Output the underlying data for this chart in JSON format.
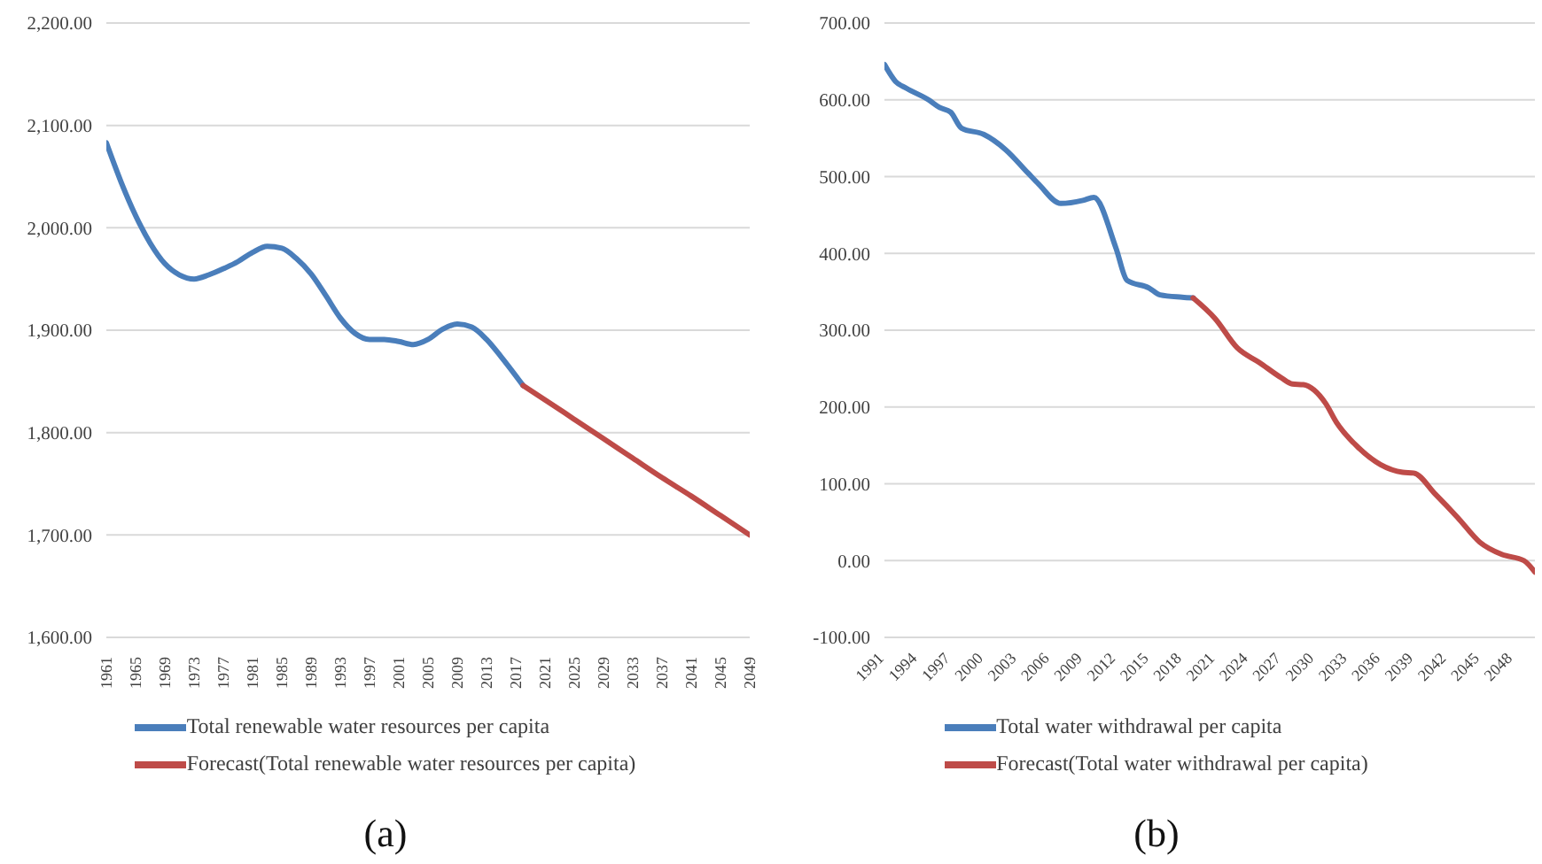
{
  "chart_data": [
    {
      "type": "line",
      "annotations": [
        "(a)"
      ],
      "xlim": [
        1961,
        2049
      ],
      "xticks": [
        1961,
        1965,
        1969,
        1973,
        1977,
        1981,
        1985,
        1989,
        1993,
        1997,
        2001,
        2005,
        2009,
        2013,
        2017,
        2021,
        2025,
        2029,
        2033,
        2037,
        2041,
        2045,
        2049
      ],
      "ylim": [
        1600,
        2200
      ],
      "yticks": [
        {
          "value": 1600,
          "label": "1,600.00"
        },
        {
          "value": 1700,
          "label": "1,700.00"
        },
        {
          "value": 1800,
          "label": "1,800.00"
        },
        {
          "value": 1900,
          "label": "1,900.00"
        },
        {
          "value": 2000,
          "label": "2,000.00"
        },
        {
          "value": 2100,
          "label": "2,100.00"
        },
        {
          "value": 2200,
          "label": "2,200.00"
        }
      ],
      "grid": "y",
      "legend": "bottom",
      "series": [
        {
          "name": "Total renewable water resources per capita",
          "color": "#4a7ebb",
          "x": [
            1961,
            1963,
            1965,
            1967,
            1969,
            1971,
            1973,
            1975,
            1977,
            1979,
            1981,
            1983,
            1985,
            1987,
            1989,
            1991,
            1993,
            1995,
            1997,
            1999,
            2001,
            2003,
            2005,
            2007,
            2009,
            2011,
            2013,
            2015,
            2018
          ],
          "values": [
            2083,
            2045,
            2012,
            1985,
            1965,
            1954,
            1950,
            1954,
            1960,
            1967,
            1976,
            1982,
            1980,
            1970,
            1955,
            1934,
            1912,
            1897,
            1891,
            1891,
            1889,
            1886,
            1891,
            1901,
            1906,
            1903,
            1891,
            1874,
            1846
          ]
        },
        {
          "name": "Forecast(Total renewable water resources per capita)",
          "color": "#be4b48",
          "x": [
            2018,
            2021,
            2025,
            2029,
            2033,
            2037,
            2041,
            2045,
            2049
          ],
          "values": [
            1846,
            1832,
            1813,
            1794,
            1775,
            1756,
            1738,
            1719,
            1700
          ]
        }
      ]
    },
    {
      "type": "line",
      "annotations": [
        "(b)"
      ],
      "xlim": [
        1991,
        2050
      ],
      "xticks": [
        1991,
        1994,
        1997,
        2000,
        2003,
        2006,
        2009,
        2012,
        2015,
        2018,
        2021,
        2024,
        2027,
        2030,
        2033,
        2036,
        2039,
        2042,
        2045,
        2048
      ],
      "ylim": [
        -100,
        700
      ],
      "yticks": [
        {
          "value": -100,
          "label": "-100.00"
        },
        {
          "value": 0,
          "label": "0.00"
        },
        {
          "value": 100,
          "label": "100.00"
        },
        {
          "value": 200,
          "label": "200.00"
        },
        {
          "value": 300,
          "label": "300.00"
        },
        {
          "value": 400,
          "label": "400.00"
        },
        {
          "value": 500,
          "label": "500.00"
        },
        {
          "value": 600,
          "label": "600.00"
        },
        {
          "value": 700,
          "label": "700.00"
        }
      ],
      "grid": "y",
      "legend": "bottom",
      "series": [
        {
          "name": "Total water withdrawal per capita",
          "color": "#4a7ebb",
          "x": [
            1991,
            1992,
            1993,
            1995,
            1996,
            1997,
            1998,
            2000,
            2002,
            2004,
            2005,
            2007,
            2009,
            2010,
            2012,
            2013,
            2015,
            2016,
            2018,
            2019
          ],
          "values": [
            646,
            624,
            615,
            600,
            590,
            584,
            563,
            555,
            535,
            505,
            490,
            465,
            469,
            473,
            407,
            365,
            355,
            346,
            343,
            342
          ]
        },
        {
          "name": "Forecast(Total water withdrawal per capita)",
          "color": "#be4b48",
          "x": [
            2019,
            2021,
            2023,
            2025,
            2027,
            2028,
            2029,
            2031,
            2032,
            2034,
            2036,
            2038,
            2039,
            2041,
            2043,
            2045,
            2047,
            2049,
            2050
          ],
          "values": [
            342,
            315,
            277,
            258,
            238,
            230,
            229,
            205,
            180,
            147,
            125,
            115,
            114,
            86,
            56,
            24,
            8,
            0,
            -15
          ]
        }
      ]
    }
  ]
}
